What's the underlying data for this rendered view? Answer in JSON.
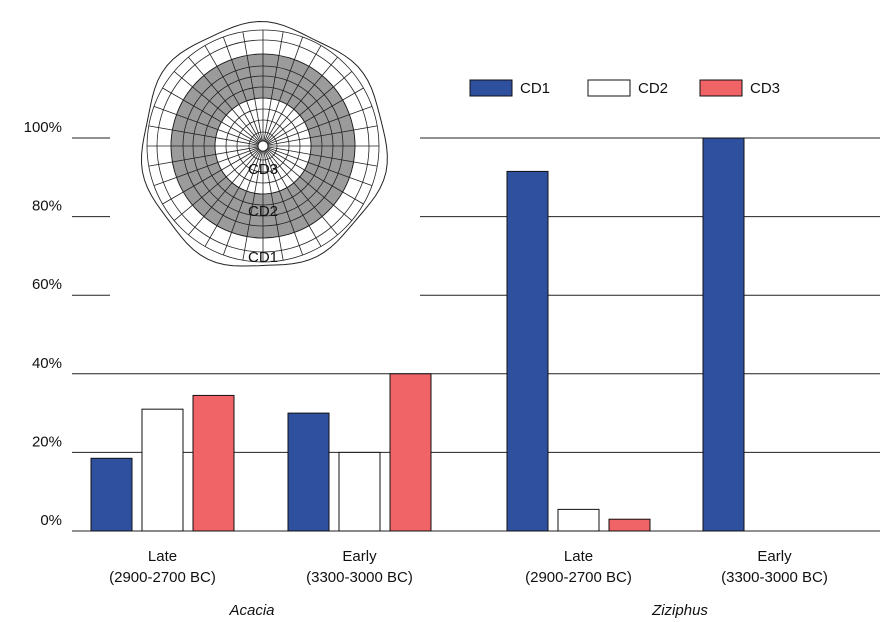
{
  "chart_data": {
    "type": "bar",
    "categories": [
      [
        "Late",
        "(2900-2700 BC)"
      ],
      [
        "Early",
        "(3300-3000 BC)"
      ],
      [
        "Late",
        "(2900-2700 BC)"
      ],
      [
        "Early",
        "(3300-3000 BC)"
      ]
    ],
    "group_labels": [
      "Acacia",
      "Ziziphus"
    ],
    "series": [
      {
        "name": "CD1",
        "color": "#2f4f9f",
        "values": [
          18.5,
          30,
          91.5,
          100
        ]
      },
      {
        "name": "CD2",
        "color": "#ffffff",
        "values": [
          31,
          20,
          5.5,
          0
        ]
      },
      {
        "name": "CD3",
        "color": "#f06468",
        "values": [
          34.5,
          40,
          3,
          0
        ]
      }
    ],
    "ylim": [
      0,
      100
    ],
    "yticks": [
      {
        "value": 0,
        "label": "0%"
      },
      {
        "value": 20,
        "label": "20%"
      },
      {
        "value": 40,
        "label": "40%"
      },
      {
        "value": 60,
        "label": "60%"
      },
      {
        "value": 80,
        "label": "80%"
      },
      {
        "value": 100,
        "label": "100%"
      }
    ],
    "grid": true,
    "legend": "top-right",
    "inset_labels": [
      "CD3",
      "CD2",
      "CD1"
    ]
  }
}
